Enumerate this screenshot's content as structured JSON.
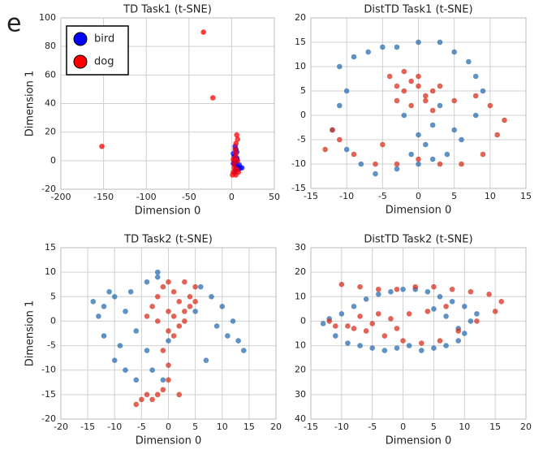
{
  "panel_label": "e",
  "chart_data": [
    {
      "type": "scatter",
      "title": "TD Task1 (t-SNE)",
      "xlabel": "Dimension 0",
      "ylabel": "Dimension 1",
      "xlim": [
        -200,
        50
      ],
      "xticks": [
        -200,
        -150,
        -100,
        -50,
        0,
        50
      ],
      "ylim": [
        -20,
        100
      ],
      "yticks": [
        -20,
        0,
        20,
        40,
        60,
        80,
        100
      ],
      "grid": true,
      "legend": "upper left",
      "series": [
        {
          "name": "bird",
          "color": "#0000ff",
          "x": [
            2,
            3,
            4,
            5,
            6,
            5,
            4,
            7,
            8,
            10,
            12,
            3,
            5,
            6,
            4,
            2,
            9,
            6
          ],
          "y": [
            5,
            0,
            -3,
            -6,
            2,
            8,
            -8,
            -4,
            -6,
            -5,
            -5,
            3,
            -1,
            6,
            10,
            -2,
            -3,
            1
          ]
        },
        {
          "name": "dog",
          "color": "#ff0000",
          "x": [
            1,
            2,
            3,
            4,
            5,
            6,
            7,
            3,
            5,
            8,
            2,
            4,
            6,
            7,
            5,
            -152,
            -33,
            -22
          ],
          "y": [
            -10,
            -8,
            -5,
            2,
            12,
            18,
            15,
            -2,
            5,
            -8,
            1,
            8,
            -6,
            0,
            -10,
            10,
            90,
            44
          ]
        }
      ]
    },
    {
      "type": "scatter",
      "title": "DistTD Task1 (t-SNE)",
      "xlabel": "Dimension 0",
      "xlim": [
        -15,
        15
      ],
      "xticks": [
        -15,
        -10,
        -5,
        0,
        5,
        10,
        15
      ],
      "ylim": [
        -15,
        20
      ],
      "yticks": [
        -15,
        -10,
        -5,
        0,
        5,
        10,
        15,
        20
      ],
      "grid": true,
      "series": [
        {
          "color": "#2b6fb0",
          "x": [
            -10,
            -11,
            -9,
            -7,
            -5,
            -3,
            0,
            3,
            5,
            7,
            8,
            9,
            8,
            6,
            4,
            0,
            -3,
            -6,
            -8,
            -10,
            -12,
            -11,
            2,
            1,
            -2,
            3,
            5,
            -1,
            0,
            2
          ],
          "y": [
            5,
            10,
            12,
            13,
            14,
            14,
            15,
            15,
            13,
            11,
            8,
            5,
            0,
            -5,
            -8,
            -10,
            -11,
            -12,
            -10,
            -7,
            -3,
            2,
            -2,
            -6,
            0,
            2,
            -3,
            -8,
            -4,
            -9
          ]
        },
        {
          "color": "#d7301f",
          "x": [
            -4,
            -3,
            -2,
            -1,
            0,
            1,
            2,
            -3,
            -1,
            1,
            3,
            -2,
            0,
            2,
            -11,
            -9,
            -6,
            -3,
            0,
            3,
            6,
            9,
            11,
            12,
            10,
            8,
            5,
            -5,
            -12,
            -13
          ],
          "y": [
            8,
            6,
            5,
            7,
            6,
            4,
            5,
            3,
            2,
            3,
            6,
            9,
            8,
            1,
            -5,
            -8,
            -10,
            -10,
            -9,
            -10,
            -10,
            -8,
            -4,
            -1,
            2,
            4,
            3,
            -6,
            -3,
            -7
          ]
        }
      ]
    },
    {
      "type": "scatter",
      "title": "TD Task2 (t-SNE)",
      "xlabel": "Dimension 0",
      "ylabel": "Dimension 1",
      "xlim": [
        -20,
        20
      ],
      "xticks": [
        -20,
        -15,
        -10,
        -5,
        0,
        5,
        10,
        15,
        20
      ],
      "ylim": [
        -20,
        15
      ],
      "yticks": [
        -20,
        -15,
        -10,
        -5,
        0,
        5,
        10,
        15
      ],
      "grid": true,
      "series": [
        {
          "color": "#2b6fb0",
          "x": [
            -14,
            -13,
            -12,
            -10,
            -8,
            -6,
            -4,
            -2,
            -10,
            -12,
            -8,
            -6,
            -4,
            -3,
            -1,
            0,
            6,
            8,
            10,
            12,
            13,
            14,
            9,
            7,
            11,
            5,
            -7,
            -9,
            -11,
            -2
          ],
          "y": [
            4,
            1,
            -3,
            -8,
            -10,
            -12,
            8,
            9,
            5,
            3,
            2,
            -2,
            -6,
            -10,
            -12,
            -4,
            7,
            5,
            3,
            0,
            -4,
            -6,
            -1,
            -8,
            -3,
            2,
            6,
            -5,
            6,
            10
          ]
        },
        {
          "color": "#d7301f",
          "x": [
            -3,
            -2,
            -1,
            0,
            1,
            2,
            3,
            4,
            5,
            -2,
            0,
            2,
            4,
            1,
            3,
            -1,
            0,
            0,
            -1,
            -2,
            -4,
            -5,
            -6,
            -3,
            2,
            5,
            3,
            -4,
            1,
            0
          ],
          "y": [
            3,
            5,
            7,
            8,
            6,
            4,
            2,
            5,
            7,
            0,
            2,
            -1,
            3,
            -3,
            0,
            -6,
            -9,
            -12,
            -14,
            -15,
            -15,
            -16,
            -17,
            -16,
            -15,
            4,
            8,
            1,
            1,
            -2
          ]
        }
      ]
    },
    {
      "type": "scatter",
      "title": "DistTD Task2 (t-SNE)",
      "xlabel": "Dimension 0",
      "xlim": [
        -15,
        20
      ],
      "xticks": [
        -15,
        -10,
        -5,
        0,
        5,
        10,
        15,
        20
      ],
      "ylim": [
        -40,
        30
      ],
      "yticks": [
        {
          "value": -40,
          "label": "40"
        },
        {
          "value": -30,
          "label": "30"
        },
        {
          "value": -20,
          "label": "20"
        },
        {
          "value": -10,
          "label": "10"
        },
        0,
        10,
        20,
        30
      ],
      "grid": true,
      "series": [
        {
          "color": "#2b6fb0",
          "x": [
            -13,
            -11,
            -9,
            -7,
            -5,
            -3,
            -1,
            1,
            3,
            5,
            7,
            9,
            10,
            11,
            12,
            10,
            8,
            6,
            4,
            2,
            0,
            -2,
            -4,
            -6,
            -8,
            -10,
            -12,
            5,
            7,
            9
          ],
          "y": [
            -1,
            -6,
            -9,
            -10,
            -11,
            -12,
            -11,
            -10,
            -12,
            -11,
            -10,
            -8,
            -5,
            0,
            3,
            6,
            8,
            10,
            12,
            13,
            13,
            12,
            11,
            9,
            6,
            3,
            1,
            5,
            2,
            -3
          ]
        },
        {
          "color": "#d7301f",
          "x": [
            -10,
            -7,
            -4,
            -1,
            2,
            5,
            8,
            11,
            14,
            16,
            15,
            12,
            9,
            6,
            3,
            0,
            -3,
            -6,
            -9,
            -12,
            -11,
            -8,
            -5,
            -2,
            1,
            4,
            7,
            -7,
            -4,
            -1
          ],
          "y": [
            15,
            14,
            13,
            13,
            14,
            14,
            13,
            12,
            11,
            8,
            4,
            0,
            -4,
            -8,
            -9,
            -8,
            -6,
            -4,
            -2,
            0,
            -2,
            -3,
            -1,
            1,
            3,
            4,
            6,
            2,
            3,
            -3
          ]
        }
      ]
    }
  ]
}
